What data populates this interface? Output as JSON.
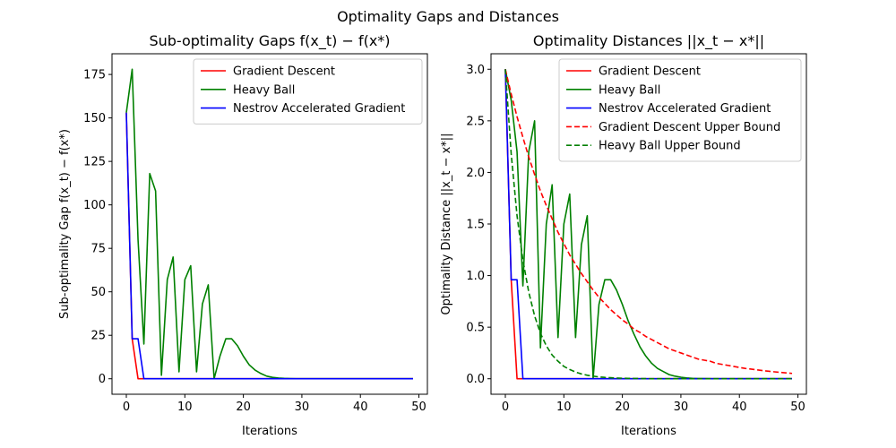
{
  "figure": {
    "suptitle": "Optimality Gaps and Distances"
  },
  "chart_data": [
    {
      "type": "line",
      "title": "Sub-optimality Gaps f(x_t) − f(x*)",
      "xlabel": "Iterations",
      "ylabel": "Sub-optimality Gap f(x_t) − f(x*)",
      "xlim": [
        -2.45,
        51.45
      ],
      "ylim": [
        -8.9,
        186.9
      ],
      "xticks": [
        0,
        10,
        20,
        30,
        40,
        50
      ],
      "yticks": [
        0,
        25,
        50,
        75,
        100,
        125,
        150,
        175
      ],
      "legend": "top-right",
      "x": [
        0,
        1,
        2,
        3,
        4,
        5,
        6,
        7,
        8,
        9,
        10,
        11,
        12,
        13,
        14,
        15,
        16,
        17,
        18,
        19,
        20,
        21,
        22,
        23,
        24,
        25,
        26,
        27,
        28,
        29,
        30,
        31,
        32,
        33,
        34,
        35,
        36,
        37,
        38,
        39,
        40,
        41,
        42,
        43,
        44,
        45,
        46,
        47,
        48,
        49
      ],
      "series": [
        {
          "name": "Gradient Descent",
          "color": "#ff0000",
          "dash": "solid",
          "values": [
            153,
            23,
            0,
            0,
            0,
            0,
            0,
            0,
            0,
            0,
            0,
            0,
            0,
            0,
            0,
            0,
            0,
            0,
            0,
            0,
            0,
            0,
            0,
            0,
            0,
            0,
            0,
            0,
            0,
            0,
            0,
            0,
            0,
            0,
            0,
            0,
            0,
            0,
            0,
            0,
            0,
            0,
            0,
            0,
            0,
            0,
            0,
            0,
            0,
            0
          ]
        },
        {
          "name": "Heavy Ball",
          "color": "#008000",
          "dash": "solid",
          "values": [
            153,
            178,
            80,
            20,
            118,
            108,
            2,
            57,
            70,
            4,
            57,
            65,
            4,
            43,
            54,
            0,
            13,
            23,
            23,
            19,
            13,
            8,
            5,
            3,
            1.5,
            0.8,
            0.4,
            0.2,
            0.1,
            0,
            0,
            0,
            0,
            0,
            0,
            0,
            0,
            0,
            0,
            0,
            0,
            0,
            0,
            0,
            0,
            0,
            0,
            0,
            0,
            0
          ]
        },
        {
          "name": "Nestrov Accelerated Gradient",
          "color": "#0000ff",
          "dash": "solid",
          "values": [
            153,
            23,
            23,
            0,
            0,
            0,
            0,
            0,
            0,
            0,
            0,
            0,
            0,
            0,
            0,
            0,
            0,
            0,
            0,
            0,
            0,
            0,
            0,
            0,
            0,
            0,
            0,
            0,
            0,
            0,
            0,
            0,
            0,
            0,
            0,
            0,
            0,
            0,
            0,
            0,
            0,
            0,
            0,
            0,
            0,
            0,
            0,
            0,
            0,
            0
          ]
        }
      ]
    },
    {
      "type": "line",
      "title": "Optimality Distances ||x_t − x*||",
      "xlabel": "Iterations",
      "ylabel": "Optimality Distance ||x_t − x*||",
      "xlim": [
        -2.45,
        51.45
      ],
      "ylim": [
        -0.15,
        3.15
      ],
      "xticks": [
        0,
        10,
        20,
        30,
        40,
        50
      ],
      "yticks": [
        0.0,
        0.5,
        1.0,
        1.5,
        2.0,
        2.5,
        3.0
      ],
      "legend": "top-right",
      "x": [
        0,
        1,
        2,
        3,
        4,
        5,
        6,
        7,
        8,
        9,
        10,
        11,
        12,
        13,
        14,
        15,
        16,
        17,
        18,
        19,
        20,
        21,
        22,
        23,
        24,
        25,
        26,
        27,
        28,
        29,
        30,
        31,
        32,
        33,
        34,
        35,
        36,
        37,
        38,
        39,
        40,
        41,
        42,
        43,
        44,
        45,
        46,
        47,
        48,
        49
      ],
      "series": [
        {
          "name": "Gradient Descent",
          "color": "#ff0000",
          "dash": "solid",
          "values": [
            3.0,
            0.96,
            0,
            0,
            0,
            0,
            0,
            0,
            0,
            0,
            0,
            0,
            0,
            0,
            0,
            0,
            0,
            0,
            0,
            0,
            0,
            0,
            0,
            0,
            0,
            0,
            0,
            0,
            0,
            0,
            0,
            0,
            0,
            0,
            0,
            0,
            0,
            0,
            0,
            0,
            0,
            0,
            0,
            0,
            0,
            0,
            0,
            0,
            0,
            0
          ]
        },
        {
          "name": "Heavy Ball",
          "color": "#008000",
          "dash": "solid",
          "values": [
            3.0,
            2.7,
            2.2,
            0.9,
            2.2,
            2.5,
            0.3,
            1.5,
            1.88,
            0.4,
            1.5,
            1.79,
            0.4,
            1.3,
            1.58,
            0.0,
            0.72,
            0.96,
            0.96,
            0.86,
            0.72,
            0.56,
            0.43,
            0.31,
            0.22,
            0.15,
            0.1,
            0.07,
            0.04,
            0.025,
            0.015,
            0.008,
            0.004,
            0.002,
            0.001,
            0,
            0,
            0,
            0,
            0,
            0,
            0,
            0,
            0,
            0,
            0,
            0,
            0,
            0,
            0
          ]
        },
        {
          "name": "Nestrov Accelerated Gradient",
          "color": "#0000ff",
          "dash": "solid",
          "values": [
            3.0,
            0.96,
            0.96,
            0,
            0,
            0,
            0,
            0,
            0,
            0,
            0,
            0,
            0,
            0,
            0,
            0,
            0,
            0,
            0,
            0,
            0,
            0,
            0,
            0,
            0,
            0,
            0,
            0,
            0,
            0,
            0,
            0,
            0,
            0,
            0,
            0,
            0,
            0,
            0,
            0,
            0,
            0,
            0,
            0,
            0,
            0,
            0,
            0,
            0,
            0
          ]
        },
        {
          "name": "Gradient Descent Upper Bound",
          "color": "#ff0000",
          "dash": "dashed",
          "values": [
            3.0,
            2.76,
            2.54,
            2.34,
            2.15,
            1.98,
            1.82,
            1.68,
            1.55,
            1.42,
            1.31,
            1.2,
            1.11,
            1.02,
            0.94,
            0.86,
            0.79,
            0.73,
            0.67,
            0.62,
            0.57,
            0.53,
            0.48,
            0.45,
            0.41,
            0.38,
            0.35,
            0.32,
            0.29,
            0.27,
            0.25,
            0.23,
            0.21,
            0.19,
            0.18,
            0.17,
            0.15,
            0.14,
            0.13,
            0.12,
            0.11,
            0.1,
            0.094,
            0.086,
            0.079,
            0.073,
            0.067,
            0.062,
            0.057,
            0.052
          ]
        },
        {
          "name": "Heavy Ball Upper Bound",
          "color": "#008000",
          "dash": "dashed",
          "values": [
            3.0,
            2.18,
            1.58,
            1.15,
            0.84,
            0.61,
            0.44,
            0.32,
            0.23,
            0.17,
            0.12,
            0.09,
            0.065,
            0.047,
            0.034,
            0.025,
            0.018,
            0.013,
            0.01,
            0.007,
            0.005,
            0.004,
            0.003,
            0.002,
            0.001,
            0,
            0,
            0,
            0,
            0,
            0,
            0,
            0,
            0,
            0,
            0,
            0,
            0,
            0,
            0,
            0,
            0,
            0,
            0,
            0,
            0,
            0,
            0,
            0,
            0
          ]
        }
      ]
    }
  ]
}
